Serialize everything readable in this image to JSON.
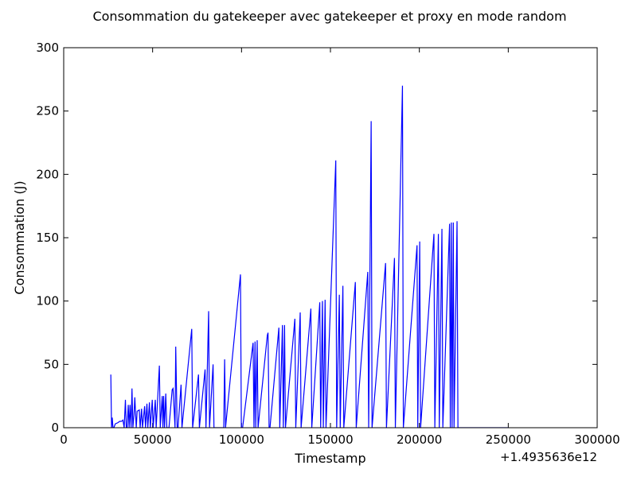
{
  "chart_data": {
    "type": "line",
    "title": "Consommation du gatekeeper avec gatekeeper et proxy en mode random",
    "xlabel": "Timestamp",
    "ylabel": "Consommation (J)",
    "x_offset_label": "+1.4935636e12",
    "xlim": [
      0,
      300000
    ],
    "ylim": [
      0,
      300
    ],
    "x_ticks": [
      0,
      50000,
      100000,
      150000,
      200000,
      250000,
      300000
    ],
    "x_tick_labels": [
      "0",
      "50000",
      "100000",
      "150000",
      "200000",
      "250000",
      "300000"
    ],
    "y_ticks": [
      0,
      50,
      100,
      150,
      200,
      250,
      300
    ],
    "y_tick_labels": [
      "0",
      "50",
      "100",
      "150",
      "200",
      "250",
      "300"
    ],
    "grid": false,
    "line_color": "#0000ff",
    "series": [
      {
        "x": [
          26500,
          26900,
          27300,
          27700,
          28200,
          29000,
          30500,
          31500,
          32500,
          33300,
          34000,
          34700,
          35200,
          35700,
          36300,
          36800,
          37300,
          37900,
          38400,
          38900,
          39500,
          40000,
          40800,
          41300,
          42500,
          43000,
          43800,
          44300,
          45500,
          46000,
          46800,
          47300,
          48200,
          48700,
          49800,
          50300,
          51500,
          52000,
          53800,
          54300,
          55400,
          55800,
          56200,
          56700,
          57400,
          58000,
          58700,
          59200,
          61000,
          61500,
          62600,
          63000,
          63800,
          64300,
          66000,
          66500,
          72000,
          72500,
          75800,
          76300,
          79500,
          80000,
          81500,
          82000,
          84000,
          84500,
          90000,
          90500,
          91000,
          99400,
          99900,
          100600,
          106500,
          107000,
          107600,
          108000,
          108800,
          109300,
          114500,
          114900,
          115500,
          116000,
          121000,
          121500,
          123000,
          123500,
          124200,
          124700,
          130000,
          130500,
          133000,
          133500,
          139000,
          139500,
          144000,
          144500,
          145500,
          146000,
          147000,
          147500,
          153000,
          153500,
          155000,
          155500,
          157000,
          157500,
          164000,
          164500,
          171000,
          171500,
          172900,
          173400,
          181000,
          181500,
          186000,
          186500,
          190500,
          191000,
          198700,
          199100,
          200200,
          200700,
          208200,
          208700,
          210700,
          211200,
          212700,
          213200,
          217000,
          217400,
          218000,
          218400,
          219100,
          219500,
          221200,
          221700,
          250000
        ],
        "y": [
          42,
          0,
          8,
          0,
          0,
          3,
          4,
          5,
          5,
          6,
          0,
          22,
          0,
          0,
          18,
          0,
          18,
          0,
          31,
          0,
          10,
          24,
          0,
          13,
          14,
          0,
          15,
          0,
          17,
          0,
          19,
          0,
          20,
          0,
          22,
          0,
          22,
          0,
          49,
          0,
          25,
          0,
          25,
          0,
          27,
          0,
          0,
          0,
          30,
          31,
          0,
          64,
          0,
          0,
          34,
          0,
          78,
          0,
          42,
          0,
          46,
          0,
          92,
          0,
          50,
          0,
          0,
          54,
          0,
          121,
          0,
          0,
          67,
          0,
          68,
          0,
          69,
          0,
          73,
          75,
          0,
          0,
          79,
          0,
          81,
          0,
          81,
          0,
          86,
          0,
          91,
          0,
          94,
          0,
          99,
          0,
          100,
          0,
          101,
          0,
          211,
          0,
          105,
          0,
          112,
          0,
          115,
          0,
          123,
          0,
          242,
          0,
          130,
          0,
          134,
          0,
          270,
          0,
          144,
          0,
          147,
          0,
          153,
          0,
          153,
          0,
          157,
          0,
          161,
          0,
          162,
          0,
          162,
          0,
          163,
          0,
          0
        ]
      }
    ]
  }
}
